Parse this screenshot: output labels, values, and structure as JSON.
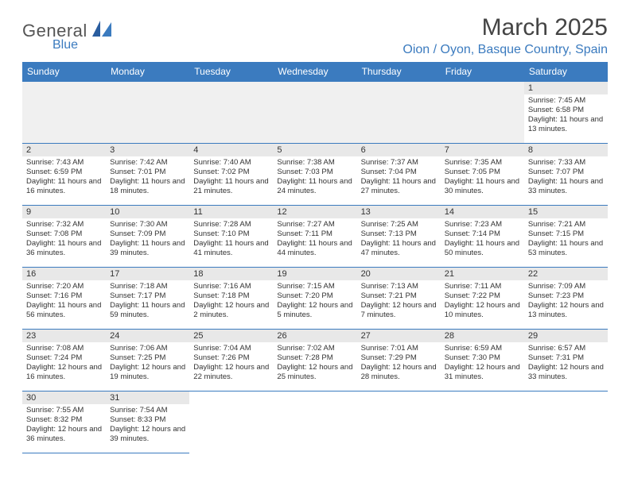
{
  "logo": {
    "main": "General",
    "sub": "Blue"
  },
  "title": "March 2025",
  "location": "Oion / Oyon, Basque Country, Spain",
  "colors": {
    "header_bg": "#3b7bbf",
    "header_text": "#ffffff",
    "row_border": "#3b7bbf",
    "daynum_bg": "#e8e8e8",
    "empty_bg": "#f0f0f0",
    "accent": "#3b7bbf"
  },
  "weekdays": [
    "Sunday",
    "Monday",
    "Tuesday",
    "Wednesday",
    "Thursday",
    "Friday",
    "Saturday"
  ],
  "weeks": [
    [
      null,
      null,
      null,
      null,
      null,
      null,
      {
        "n": "1",
        "sunrise": "7:45 AM",
        "sunset": "6:58 PM",
        "daylight": "11 hours and 13 minutes."
      }
    ],
    [
      {
        "n": "2",
        "sunrise": "7:43 AM",
        "sunset": "6:59 PM",
        "daylight": "11 hours and 16 minutes."
      },
      {
        "n": "3",
        "sunrise": "7:42 AM",
        "sunset": "7:01 PM",
        "daylight": "11 hours and 18 minutes."
      },
      {
        "n": "4",
        "sunrise": "7:40 AM",
        "sunset": "7:02 PM",
        "daylight": "11 hours and 21 minutes."
      },
      {
        "n": "5",
        "sunrise": "7:38 AM",
        "sunset": "7:03 PM",
        "daylight": "11 hours and 24 minutes."
      },
      {
        "n": "6",
        "sunrise": "7:37 AM",
        "sunset": "7:04 PM",
        "daylight": "11 hours and 27 minutes."
      },
      {
        "n": "7",
        "sunrise": "7:35 AM",
        "sunset": "7:05 PM",
        "daylight": "11 hours and 30 minutes."
      },
      {
        "n": "8",
        "sunrise": "7:33 AM",
        "sunset": "7:07 PM",
        "daylight": "11 hours and 33 minutes."
      }
    ],
    [
      {
        "n": "9",
        "sunrise": "7:32 AM",
        "sunset": "7:08 PM",
        "daylight": "11 hours and 36 minutes."
      },
      {
        "n": "10",
        "sunrise": "7:30 AM",
        "sunset": "7:09 PM",
        "daylight": "11 hours and 39 minutes."
      },
      {
        "n": "11",
        "sunrise": "7:28 AM",
        "sunset": "7:10 PM",
        "daylight": "11 hours and 41 minutes."
      },
      {
        "n": "12",
        "sunrise": "7:27 AM",
        "sunset": "7:11 PM",
        "daylight": "11 hours and 44 minutes."
      },
      {
        "n": "13",
        "sunrise": "7:25 AM",
        "sunset": "7:13 PM",
        "daylight": "11 hours and 47 minutes."
      },
      {
        "n": "14",
        "sunrise": "7:23 AM",
        "sunset": "7:14 PM",
        "daylight": "11 hours and 50 minutes."
      },
      {
        "n": "15",
        "sunrise": "7:21 AM",
        "sunset": "7:15 PM",
        "daylight": "11 hours and 53 minutes."
      }
    ],
    [
      {
        "n": "16",
        "sunrise": "7:20 AM",
        "sunset": "7:16 PM",
        "daylight": "11 hours and 56 minutes."
      },
      {
        "n": "17",
        "sunrise": "7:18 AM",
        "sunset": "7:17 PM",
        "daylight": "11 hours and 59 minutes."
      },
      {
        "n": "18",
        "sunrise": "7:16 AM",
        "sunset": "7:18 PM",
        "daylight": "12 hours and 2 minutes."
      },
      {
        "n": "19",
        "sunrise": "7:15 AM",
        "sunset": "7:20 PM",
        "daylight": "12 hours and 5 minutes."
      },
      {
        "n": "20",
        "sunrise": "7:13 AM",
        "sunset": "7:21 PM",
        "daylight": "12 hours and 7 minutes."
      },
      {
        "n": "21",
        "sunrise": "7:11 AM",
        "sunset": "7:22 PM",
        "daylight": "12 hours and 10 minutes."
      },
      {
        "n": "22",
        "sunrise": "7:09 AM",
        "sunset": "7:23 PM",
        "daylight": "12 hours and 13 minutes."
      }
    ],
    [
      {
        "n": "23",
        "sunrise": "7:08 AM",
        "sunset": "7:24 PM",
        "daylight": "12 hours and 16 minutes."
      },
      {
        "n": "24",
        "sunrise": "7:06 AM",
        "sunset": "7:25 PM",
        "daylight": "12 hours and 19 minutes."
      },
      {
        "n": "25",
        "sunrise": "7:04 AM",
        "sunset": "7:26 PM",
        "daylight": "12 hours and 22 minutes."
      },
      {
        "n": "26",
        "sunrise": "7:02 AM",
        "sunset": "7:28 PM",
        "daylight": "12 hours and 25 minutes."
      },
      {
        "n": "27",
        "sunrise": "7:01 AM",
        "sunset": "7:29 PM",
        "daylight": "12 hours and 28 minutes."
      },
      {
        "n": "28",
        "sunrise": "6:59 AM",
        "sunset": "7:30 PM",
        "daylight": "12 hours and 31 minutes."
      },
      {
        "n": "29",
        "sunrise": "6:57 AM",
        "sunset": "7:31 PM",
        "daylight": "12 hours and 33 minutes."
      }
    ],
    [
      {
        "n": "30",
        "sunrise": "7:55 AM",
        "sunset": "8:32 PM",
        "daylight": "12 hours and 36 minutes."
      },
      {
        "n": "31",
        "sunrise": "7:54 AM",
        "sunset": "8:33 PM",
        "daylight": "12 hours and 39 minutes."
      },
      null,
      null,
      null,
      null,
      null
    ]
  ],
  "labels": {
    "sunrise": "Sunrise:",
    "sunset": "Sunset:",
    "daylight": "Daylight:"
  }
}
